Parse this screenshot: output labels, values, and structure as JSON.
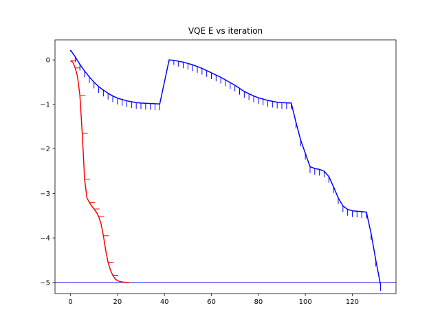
{
  "chart_data": {
    "type": "line",
    "title": "VQE E vs iteration",
    "xlabel": "",
    "ylabel": "",
    "xlim": [
      -6.6,
      138.6
    ],
    "ylim": [
      -5.25,
      0.45
    ],
    "xticks": [
      0,
      20,
      40,
      60,
      80,
      100,
      120
    ],
    "yticks": [
      0,
      -1,
      -2,
      -3,
      -4,
      -5
    ],
    "xtick_labels": [
      "0",
      "20",
      "40",
      "60",
      "80",
      "100",
      "120"
    ],
    "ytick_labels": [
      "0",
      "−1",
      "−2",
      "−3",
      "−4",
      "−5"
    ],
    "grid": false,
    "legend": "none",
    "reference_line": {
      "y": -5.0,
      "color": "#0000ff"
    },
    "series": [
      {
        "color": "#ff0000",
        "points": [
          [
            0,
            -0.02
          ],
          [
            1,
            -0.05
          ],
          [
            2,
            -0.18
          ],
          [
            3,
            -0.38
          ],
          [
            4,
            -0.8
          ],
          [
            5,
            -1.65
          ],
          [
            6,
            -2.68
          ],
          [
            7,
            -3.1
          ],
          [
            8,
            -3.2
          ],
          [
            9,
            -3.28
          ],
          [
            10,
            -3.35
          ],
          [
            11,
            -3.42
          ],
          [
            12,
            -3.52
          ],
          [
            13,
            -3.68
          ],
          [
            14,
            -3.95
          ],
          [
            15,
            -4.28
          ],
          [
            16,
            -4.55
          ],
          [
            17,
            -4.72
          ],
          [
            18,
            -4.84
          ],
          [
            19,
            -4.92
          ],
          [
            20,
            -4.96
          ],
          [
            21,
            -4.98
          ],
          [
            22,
            -4.99
          ],
          [
            23,
            -4.995
          ],
          [
            24,
            -5.0
          ],
          [
            25,
            -5.0
          ]
        ],
        "errors": [
          [
            0,
            0.0
          ],
          [
            2,
            0.22
          ],
          [
            4,
            0.0
          ],
          [
            5,
            0.0
          ],
          [
            6,
            0.0
          ],
          [
            8,
            0.0
          ],
          [
            10,
            0.0
          ],
          [
            12,
            0.0
          ],
          [
            14,
            0.0
          ],
          [
            16,
            0.0
          ],
          [
            18,
            0.0
          ]
        ]
      },
      {
        "color": "#0000ff",
        "points": [
          [
            0,
            0.22
          ],
          [
            2,
            0.07
          ],
          [
            4,
            -0.1
          ],
          [
            6,
            -0.25
          ],
          [
            8,
            -0.38
          ],
          [
            10,
            -0.5
          ],
          [
            12,
            -0.6
          ],
          [
            14,
            -0.68
          ],
          [
            16,
            -0.75
          ],
          [
            18,
            -0.81
          ],
          [
            20,
            -0.86
          ],
          [
            22,
            -0.89
          ],
          [
            24,
            -0.92
          ],
          [
            26,
            -0.94
          ],
          [
            28,
            -0.96
          ],
          [
            30,
            -0.97
          ],
          [
            32,
            -0.975
          ],
          [
            34,
            -0.98
          ],
          [
            36,
            -0.985
          ],
          [
            38,
            -0.99
          ],
          [
            42,
            0.0
          ],
          [
            44,
            -0.01
          ],
          [
            46,
            -0.03
          ],
          [
            48,
            -0.05
          ],
          [
            50,
            -0.08
          ],
          [
            52,
            -0.11
          ],
          [
            54,
            -0.15
          ],
          [
            56,
            -0.19
          ],
          [
            58,
            -0.24
          ],
          [
            60,
            -0.29
          ],
          [
            62,
            -0.34
          ],
          [
            64,
            -0.39
          ],
          [
            66,
            -0.45
          ],
          [
            68,
            -0.51
          ],
          [
            70,
            -0.57
          ],
          [
            72,
            -0.64
          ],
          [
            74,
            -0.71
          ],
          [
            76,
            -0.76
          ],
          [
            78,
            -0.81
          ],
          [
            80,
            -0.85
          ],
          [
            82,
            -0.88
          ],
          [
            84,
            -0.91
          ],
          [
            86,
            -0.93
          ],
          [
            88,
            -0.95
          ],
          [
            90,
            -0.96
          ],
          [
            92,
            -0.965
          ],
          [
            94,
            -0.97
          ],
          [
            96,
            -1.4
          ],
          [
            98,
            -1.8
          ],
          [
            100,
            -2.1
          ],
          [
            102,
            -2.4
          ],
          [
            104,
            -2.44
          ],
          [
            106,
            -2.46
          ],
          [
            108,
            -2.5
          ],
          [
            110,
            -2.62
          ],
          [
            112,
            -2.85
          ],
          [
            114,
            -3.1
          ],
          [
            116,
            -3.28
          ],
          [
            118,
            -3.36
          ],
          [
            120,
            -3.39
          ],
          [
            122,
            -3.4
          ],
          [
            124,
            -3.41
          ],
          [
            126,
            -3.42
          ],
          [
            128,
            -3.9
          ],
          [
            130,
            -4.5
          ],
          [
            132,
            -5.05
          ]
        ],
        "errors": [
          [
            0,
            0.0
          ],
          [
            2,
            0.12
          ],
          [
            4,
            0.14
          ],
          [
            6,
            0.14
          ],
          [
            8,
            0.14
          ],
          [
            10,
            0.14
          ],
          [
            12,
            0.14
          ],
          [
            14,
            0.14
          ],
          [
            16,
            0.14
          ],
          [
            18,
            0.14
          ],
          [
            20,
            0.14
          ],
          [
            22,
            0.14
          ],
          [
            24,
            0.14
          ],
          [
            26,
            0.14
          ],
          [
            28,
            0.14
          ],
          [
            30,
            0.14
          ],
          [
            32,
            0.14
          ],
          [
            34,
            0.14
          ],
          [
            36,
            0.14
          ],
          [
            38,
            0.14
          ],
          [
            42,
            0.05
          ],
          [
            44,
            0.1
          ],
          [
            46,
            0.12
          ],
          [
            48,
            0.14
          ],
          [
            50,
            0.14
          ],
          [
            52,
            0.14
          ],
          [
            54,
            0.14
          ],
          [
            56,
            0.14
          ],
          [
            58,
            0.14
          ],
          [
            60,
            0.14
          ],
          [
            62,
            0.14
          ],
          [
            64,
            0.14
          ],
          [
            66,
            0.14
          ],
          [
            68,
            0.14
          ],
          [
            70,
            0.14
          ],
          [
            72,
            0.14
          ],
          [
            74,
            0.14
          ],
          [
            76,
            0.14
          ],
          [
            78,
            0.14
          ],
          [
            80,
            0.14
          ],
          [
            82,
            0.14
          ],
          [
            84,
            0.14
          ],
          [
            86,
            0.14
          ],
          [
            88,
            0.14
          ],
          [
            90,
            0.14
          ],
          [
            92,
            0.14
          ],
          [
            94,
            0.14
          ],
          [
            96,
            0.14
          ],
          [
            98,
            0.14
          ],
          [
            100,
            0.14
          ],
          [
            102,
            0.14
          ],
          [
            104,
            0.14
          ],
          [
            106,
            0.14
          ],
          [
            108,
            0.14
          ],
          [
            110,
            0.14
          ],
          [
            112,
            0.14
          ],
          [
            114,
            0.14
          ],
          [
            116,
            0.14
          ],
          [
            118,
            0.14
          ],
          [
            120,
            0.14
          ],
          [
            122,
            0.14
          ],
          [
            124,
            0.14
          ],
          [
            126,
            0.14
          ],
          [
            128,
            0.14
          ],
          [
            130,
            0.14
          ],
          [
            132,
            0.14
          ]
        ]
      }
    ]
  }
}
